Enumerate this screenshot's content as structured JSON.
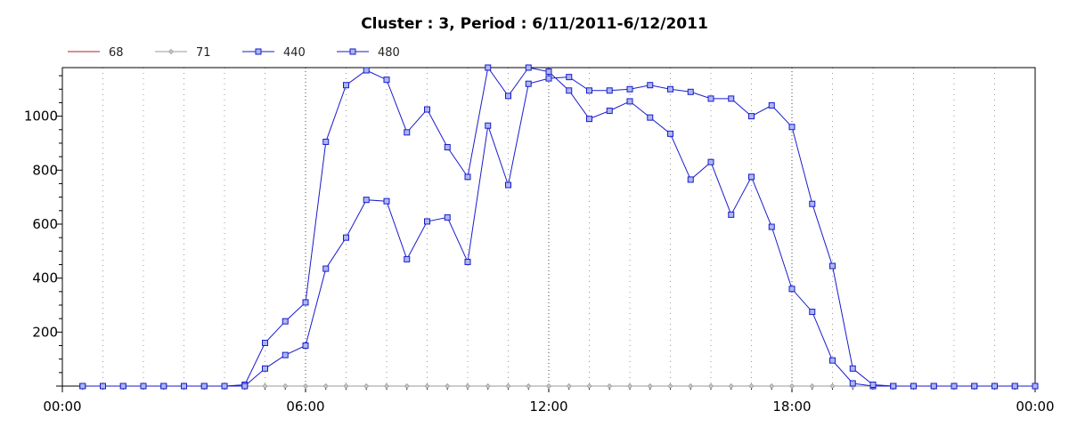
{
  "chart_data": {
    "type": "line",
    "title": "Cluster : 3, Period : 6/11/2011-6/12/2011",
    "xlabel": "",
    "ylabel": "",
    "x_ticks": [
      "00:00",
      "06:00",
      "12:00",
      "18:00",
      "00:00"
    ],
    "x_tick_hours": [
      0,
      6,
      12,
      18,
      24
    ],
    "y_ticks": [
      200,
      400,
      600,
      800,
      1000
    ],
    "xlim": [
      0,
      24
    ],
    "ylim": [
      0,
      1180
    ],
    "grid": true,
    "legend_position": "top-left",
    "series": [
      {
        "name": "68",
        "color": "#b22222",
        "marker": "none",
        "x": [],
        "y": []
      },
      {
        "name": "71",
        "color": "#9a9a9a",
        "marker": "diamond",
        "x": [
          0.5,
          1,
          1.5,
          2,
          2.5,
          3,
          3.5,
          4,
          4.5,
          5,
          5.5,
          6,
          6.5,
          7,
          7.5,
          8,
          8.5,
          9,
          9.5,
          10,
          10.5,
          11,
          11.5,
          12,
          12.5,
          13,
          13.5,
          14,
          14.5,
          15,
          15.5,
          16,
          16.5,
          17,
          17.5,
          18,
          18.5,
          19,
          19.5,
          20,
          20.5,
          21,
          21.5,
          22,
          22.5,
          23,
          23.5,
          24
        ],
        "y": [
          0,
          0,
          0,
          0,
          0,
          0,
          0,
          0,
          0,
          0,
          0,
          0,
          0,
          0,
          0,
          0,
          0,
          0,
          0,
          0,
          0,
          0,
          0,
          0,
          0,
          0,
          0,
          0,
          0,
          0,
          0,
          0,
          0,
          0,
          0,
          0,
          0,
          0,
          0,
          0,
          0,
          0,
          0,
          0,
          0,
          0,
          0,
          0
        ]
      },
      {
        "name": "440",
        "color": "#1a1acd",
        "marker": "square",
        "x": [
          0.5,
          1,
          1.5,
          2,
          2.5,
          3,
          3.5,
          4,
          4.5,
          5,
          5.5,
          6,
          6.5,
          7,
          7.5,
          8,
          8.5,
          9,
          9.5,
          10,
          10.5,
          11,
          11.5,
          12,
          12.5,
          13,
          13.5,
          14,
          14.5,
          15,
          15.5,
          16,
          16.5,
          17,
          17.5,
          18,
          18.5,
          19,
          19.5,
          20,
          20.5,
          21,
          21.5,
          22,
          22.5,
          23,
          23.5,
          24
        ],
        "y": [
          0,
          0,
          0,
          0,
          0,
          0,
          0,
          0,
          5,
          160,
          240,
          310,
          905,
          1115,
          1170,
          1135,
          940,
          1025,
          885,
          775,
          1180,
          1075,
          1180,
          1165,
          1095,
          990,
          1020,
          1055,
          995,
          935,
          765,
          830,
          635,
          775,
          590,
          360,
          275,
          95,
          10,
          0,
          0,
          0,
          0,
          0,
          0,
          0,
          0,
          0
        ]
      },
      {
        "name": "480",
        "color": "#1a1acd",
        "marker": "square",
        "x": [
          0.5,
          1,
          1.5,
          2,
          2.5,
          3,
          3.5,
          4,
          4.5,
          5,
          5.5,
          6,
          6.5,
          7,
          7.5,
          8,
          8.5,
          9,
          9.5,
          10,
          10.5,
          11,
          11.5,
          12,
          12.5,
          13,
          13.5,
          14,
          14.5,
          15,
          15.5,
          16,
          16.5,
          17,
          17.5,
          18,
          18.5,
          19,
          19.5,
          20,
          20.5,
          21,
          21.5,
          22,
          22.5,
          23,
          23.5,
          24
        ],
        "y": [
          0,
          0,
          0,
          0,
          0,
          0,
          0,
          0,
          0,
          65,
          115,
          150,
          435,
          550,
          690,
          685,
          470,
          610,
          625,
          460,
          965,
          745,
          1120,
          1140,
          1145,
          1095,
          1095,
          1100,
          1115,
          1100,
          1090,
          1065,
          1065,
          1000,
          1040,
          960,
          675,
          445,
          65,
          5,
          0,
          0,
          0,
          0,
          0,
          0,
          0,
          0
        ]
      }
    ]
  }
}
